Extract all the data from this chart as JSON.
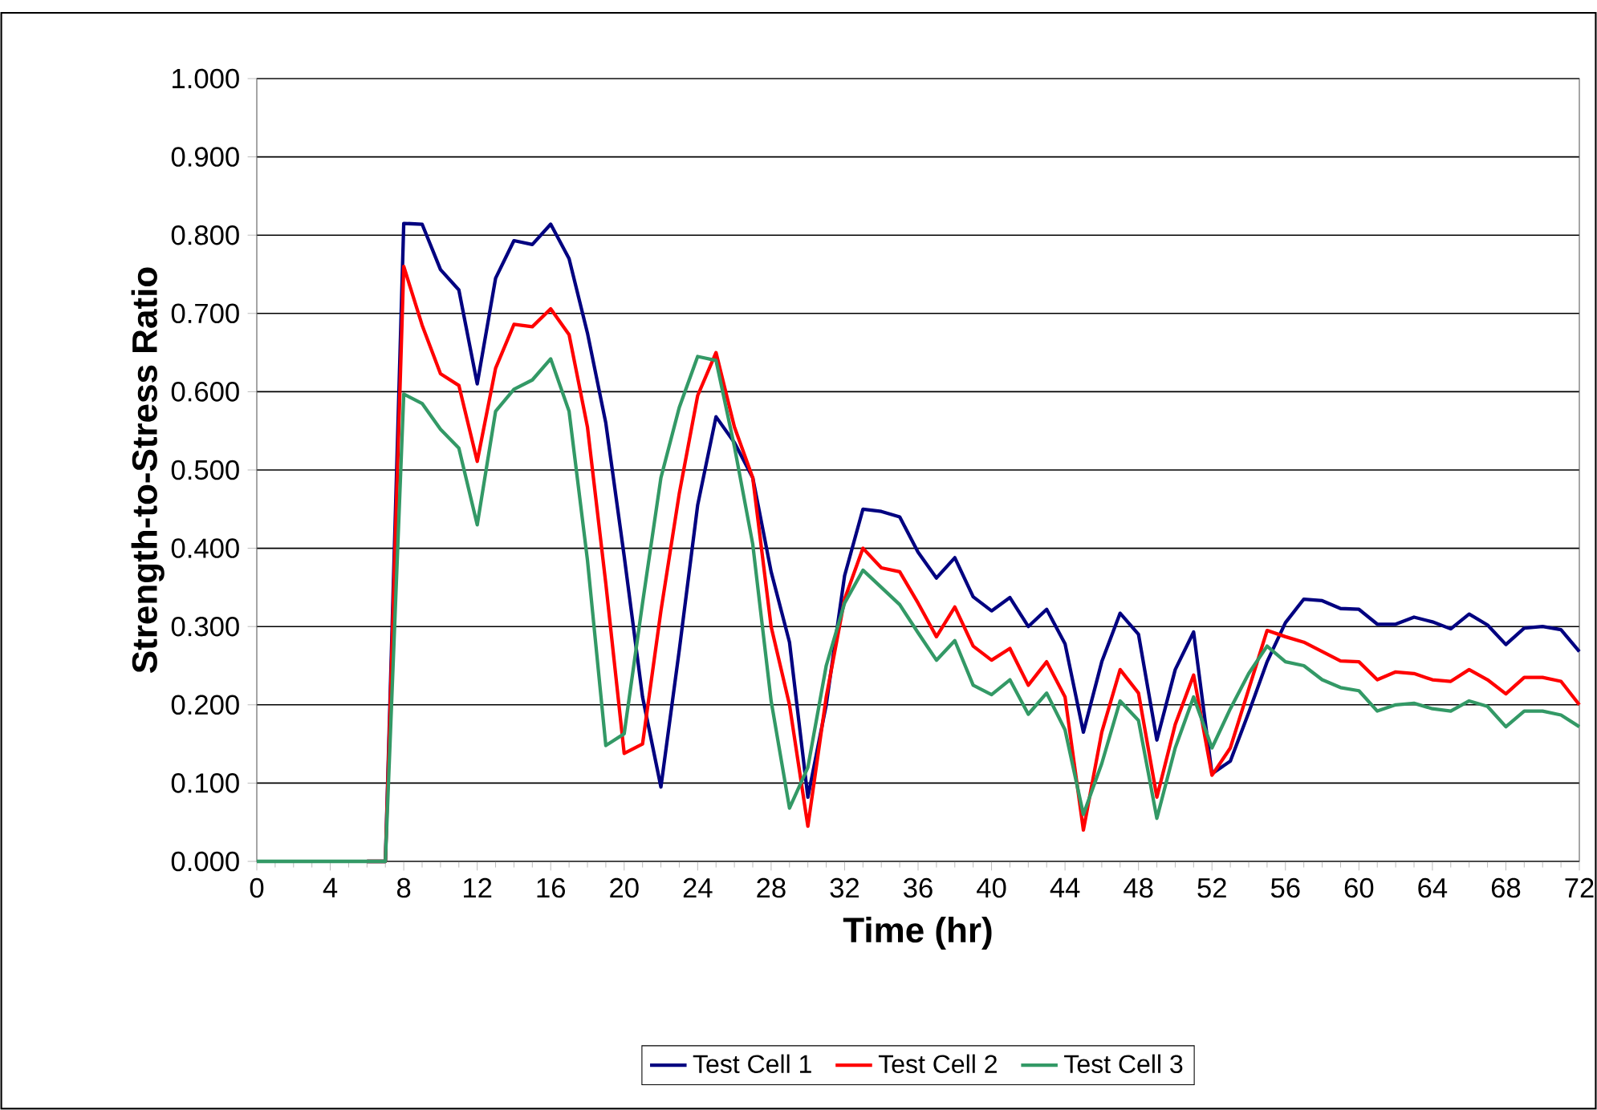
{
  "chart_data": {
    "type": "line",
    "xlabel": "Time (hr)",
    "ylabel": "Strength-to-Stress Ratio",
    "x": [
      0,
      1,
      2,
      3,
      4,
      5,
      6,
      7,
      8,
      9,
      10,
      11,
      12,
      13,
      14,
      15,
      16,
      17,
      18,
      19,
      20,
      21,
      22,
      23,
      24,
      25,
      26,
      27,
      28,
      29,
      30,
      31,
      32,
      33,
      34,
      35,
      36,
      37,
      38,
      39,
      40,
      41,
      42,
      43,
      44,
      45,
      46,
      47,
      48,
      49,
      50,
      51,
      52,
      53,
      54,
      55,
      56,
      57,
      58,
      59,
      60,
      61,
      62,
      63,
      64,
      65,
      66,
      67,
      68,
      69,
      70,
      71,
      72
    ],
    "series": [
      {
        "name": "Test Cell 1",
        "color": "#000080",
        "values": [
          null,
          null,
          null,
          null,
          null,
          null,
          0,
          0,
          0.815,
          0.814,
          0.756,
          0.73,
          0.61,
          0.745,
          0.793,
          0.788,
          0.814,
          0.77,
          0.675,
          0.56,
          0.39,
          0.21,
          0.095,
          0.27,
          0.455,
          0.568,
          0.535,
          0.49,
          0.37,
          0.28,
          0.082,
          0.2,
          0.365,
          0.45,
          0.447,
          0.44,
          0.395,
          0.362,
          0.388,
          0.338,
          0.32,
          0.337,
          0.3,
          0.322,
          0.278,
          0.165,
          0.255,
          0.317,
          0.29,
          0.155,
          0.245,
          0.293,
          0.112,
          0.128,
          0.19,
          0.255,
          0.305,
          0.335,
          0.333,
          0.323,
          0.322,
          0.303,
          0.303,
          0.312,
          0.306,
          0.297,
          0.316,
          0.302,
          0.277,
          0.298,
          0.3,
          0.296,
          0.268
        ]
      },
      {
        "name": "Test Cell 2",
        "color": "#ff0000",
        "values": [
          null,
          null,
          null,
          null,
          null,
          null,
          0,
          0,
          0.76,
          0.685,
          0.623,
          0.608,
          0.511,
          0.63,
          0.686,
          0.683,
          0.706,
          0.673,
          0.555,
          0.355,
          0.138,
          0.15,
          0.32,
          0.47,
          0.595,
          0.65,
          0.555,
          0.49,
          0.3,
          0.2,
          0.045,
          0.21,
          0.335,
          0.4,
          0.375,
          0.37,
          0.33,
          0.287,
          0.325,
          0.275,
          0.257,
          0.272,
          0.225,
          0.255,
          0.21,
          0.04,
          0.165,
          0.245,
          0.215,
          0.082,
          0.175,
          0.238,
          0.11,
          0.145,
          0.22,
          0.295,
          0.287,
          0.28,
          0.268,
          0.256,
          0.255,
          0.232,
          0.242,
          0.24,
          0.232,
          0.23,
          0.245,
          0.232,
          0.214,
          0.235,
          0.235,
          0.23,
          0.2
        ]
      },
      {
        "name": "Test Cell 3",
        "color": "#339966",
        "values": [
          0,
          0,
          0,
          0,
          0,
          0,
          0,
          0,
          0.597,
          0.585,
          0.552,
          0.528,
          0.43,
          0.575,
          0.603,
          0.615,
          0.642,
          0.575,
          0.385,
          0.148,
          0.163,
          0.33,
          0.49,
          0.58,
          0.645,
          0.64,
          0.53,
          0.405,
          0.205,
          0.068,
          0.12,
          0.25,
          0.33,
          0.372,
          0.35,
          0.328,
          0.292,
          0.257,
          0.282,
          0.225,
          0.213,
          0.232,
          0.188,
          0.215,
          0.168,
          0.06,
          0.125,
          0.205,
          0.18,
          0.055,
          0.145,
          0.21,
          0.145,
          0.195,
          0.24,
          0.275,
          0.255,
          0.25,
          0.232,
          0.222,
          0.218,
          0.192,
          0.2,
          0.202,
          0.195,
          0.192,
          0.205,
          0.198,
          0.172,
          0.192,
          0.192,
          0.187,
          0.172
        ]
      }
    ],
    "xlim": [
      0,
      72
    ],
    "xticks": [
      0,
      4,
      8,
      12,
      16,
      20,
      24,
      28,
      32,
      36,
      40,
      44,
      48,
      52,
      56,
      60,
      64,
      68,
      72
    ],
    "ylim": [
      0,
      1
    ],
    "yticks": [
      {
        "value": 0,
        "label": "0.000"
      },
      {
        "value": 0.1,
        "label": "0.100"
      },
      {
        "value": 0.2,
        "label": "0.200"
      },
      {
        "value": 0.3,
        "label": "0.300"
      },
      {
        "value": 0.4,
        "label": "0.400"
      },
      {
        "value": 0.5,
        "label": "0.500"
      },
      {
        "value": 0.6,
        "label": "0.600"
      },
      {
        "value": 0.7,
        "label": "0.700"
      },
      {
        "value": 0.8,
        "label": "0.800"
      },
      {
        "value": 0.9,
        "label": "0.900"
      },
      {
        "value": 1,
        "label": "1.000"
      }
    ],
    "grid": "y",
    "legend": "bottom",
    "marker": "none",
    "line_style": "solid"
  }
}
